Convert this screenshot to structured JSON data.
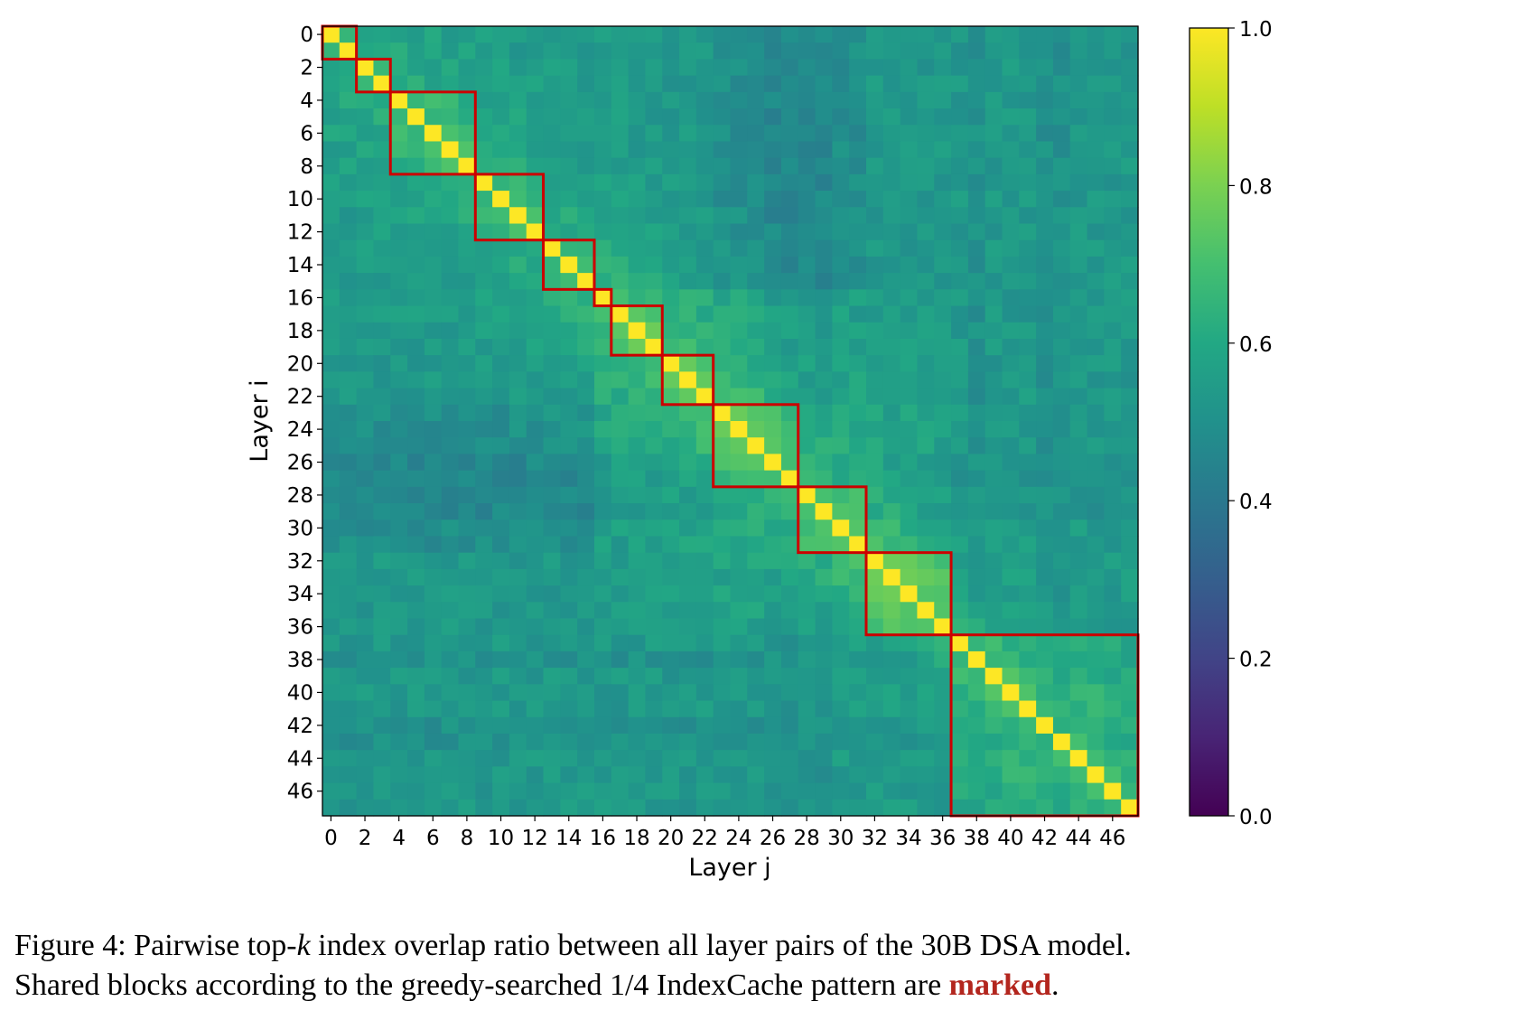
{
  "chart_data": {
    "type": "heatmap",
    "xlabel": "Layer j",
    "ylabel": "Layer i",
    "n_layers": 48,
    "x_ticks": [
      0,
      2,
      4,
      6,
      8,
      10,
      12,
      14,
      16,
      18,
      20,
      22,
      24,
      26,
      28,
      30,
      32,
      34,
      36,
      38,
      40,
      42,
      44,
      46
    ],
    "y_ticks": [
      0,
      2,
      4,
      6,
      8,
      10,
      12,
      14,
      16,
      18,
      20,
      22,
      24,
      26,
      28,
      30,
      32,
      34,
      36,
      38,
      40,
      42,
      44,
      46
    ],
    "x_tick_labels": [
      "0",
      "2",
      "4",
      "6",
      "8",
      "10",
      "12",
      "14",
      "16",
      "18",
      "20",
      "22",
      "24",
      "26",
      "28",
      "30",
      "32",
      "34",
      "36",
      "38",
      "40",
      "42",
      "44",
      "46"
    ],
    "y_tick_labels": [
      "0",
      "2",
      "4",
      "6",
      "8",
      "10",
      "12",
      "14",
      "16",
      "18",
      "20",
      "22",
      "24",
      "26",
      "28",
      "30",
      "32",
      "34",
      "36",
      "38",
      "40",
      "42",
      "44",
      "46"
    ],
    "colorbar": {
      "min": 0.0,
      "max": 1.0,
      "ticks": [
        0.0,
        0.2,
        0.4,
        0.6,
        0.8,
        1.0
      ],
      "tick_labels": [
        "0.0",
        "0.2",
        "0.4",
        "0.6",
        "0.8",
        "1.0"
      ],
      "colormap": "viridis"
    },
    "diagonal_value": 1.0,
    "typical_off_diagonal_range": [
      0.45,
      0.8
    ],
    "shared_blocks": [
      [
        0,
        1
      ],
      [
        2,
        3
      ],
      [
        4,
        8
      ],
      [
        9,
        12
      ],
      [
        13,
        15
      ],
      [
        16,
        16
      ],
      [
        17,
        19
      ],
      [
        20,
        22
      ],
      [
        23,
        27
      ],
      [
        28,
        31
      ],
      [
        32,
        36
      ],
      [
        37,
        47
      ]
    ],
    "block_outline_color": "#cc0000"
  },
  "caption": {
    "line1_prefix": "Figure 4: Pairwise top-",
    "line1_k": "k",
    "line1_suffix": " index overlap ratio between all layer pairs of the 30B DSA model.",
    "line2_prefix": "Shared blocks according to the greedy-searched 1/4 IndexCache pattern are ",
    "line2_marked": "marked",
    "line2_suffix": "."
  },
  "colors": {
    "marked_text": "#b3261e",
    "block_outline": "#cc0000"
  }
}
